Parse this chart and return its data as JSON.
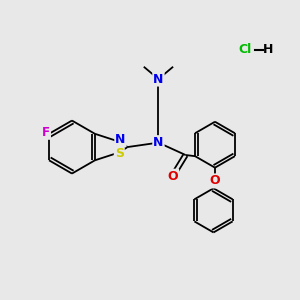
{
  "background_color": "#e8e8e8",
  "fig_size": [
    3.0,
    3.0
  ],
  "dpi": 100,
  "atom_colors": {
    "N": "#0000ee",
    "O": "#dd0000",
    "S": "#cccc00",
    "F": "#cc00cc",
    "C": "#000000",
    "Cl": "#00bb00",
    "H": "#000000"
  },
  "bond_color": "#000000",
  "bond_width": 1.3
}
